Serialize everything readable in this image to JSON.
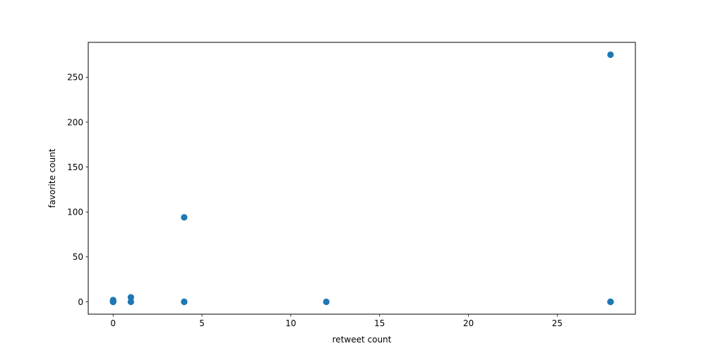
{
  "chart_data": {
    "type": "scatter",
    "title": "",
    "xlabel": "retweet count",
    "ylabel": "favorite count",
    "xlim": [
      -1.4,
      29.4
    ],
    "ylim": [
      -13.75,
      288.75
    ],
    "xticks": [
      0,
      5,
      10,
      15,
      20,
      25
    ],
    "yticks": [
      0,
      50,
      100,
      150,
      200,
      250
    ],
    "grid": false,
    "legend": "none",
    "marker_color": "#1f77b4",
    "points": [
      {
        "x": 0,
        "y": 0
      },
      {
        "x": 0,
        "y": 0
      },
      {
        "x": 0,
        "y": 1
      },
      {
        "x": 0,
        "y": 2
      },
      {
        "x": 0,
        "y": 0
      },
      {
        "x": 0,
        "y": 1
      },
      {
        "x": 1,
        "y": 5
      },
      {
        "x": 1,
        "y": 0
      },
      {
        "x": 4,
        "y": 94
      },
      {
        "x": 4,
        "y": 0
      },
      {
        "x": 4,
        "y": 0
      },
      {
        "x": 12,
        "y": 0
      },
      {
        "x": 28,
        "y": 275
      },
      {
        "x": 28,
        "y": 0
      },
      {
        "x": 28,
        "y": 0
      },
      {
        "x": 28,
        "y": 0
      }
    ]
  }
}
